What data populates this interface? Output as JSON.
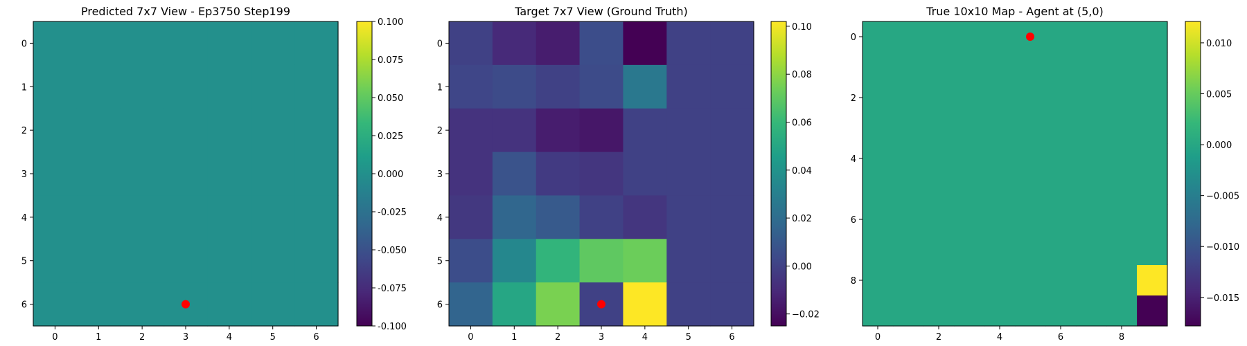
{
  "colormap": {
    "name": "viridis",
    "stops": [
      "#440154",
      "#482878",
      "#3e4989",
      "#31688e",
      "#26828e",
      "#1f9e89",
      "#35b779",
      "#6ece58",
      "#b5de2b",
      "#fde725"
    ]
  },
  "marker_color": "#ff0000",
  "chart_data": [
    {
      "type": "heatmap",
      "title": "Predicted 7x7 View - Ep3750 Step199",
      "xlabel": "",
      "ylabel": "",
      "x_ticks": [
        "0",
        "1",
        "2",
        "3",
        "4",
        "5",
        "6"
      ],
      "y_ticks": [
        "0",
        "1",
        "2",
        "3",
        "4",
        "5",
        "6"
      ],
      "vmin": -0.1,
      "vmax": 0.1,
      "colorbar_ticks": [
        "-0.100",
        "-0.075",
        "-0.050",
        "-0.025",
        "0.000",
        "0.025",
        "0.050",
        "0.075",
        "0.100"
      ],
      "values": [
        [
          0,
          0,
          0,
          0,
          0,
          0,
          0
        ],
        [
          0,
          0,
          0,
          0,
          0,
          0,
          0
        ],
        [
          0,
          0,
          0,
          0,
          0,
          0,
          0
        ],
        [
          0,
          0,
          0,
          0,
          0,
          0,
          0
        ],
        [
          0,
          0,
          0,
          0,
          0,
          0,
          0
        ],
        [
          0,
          0,
          0,
          0,
          0,
          0,
          0
        ],
        [
          0,
          0,
          0,
          0,
          0,
          0,
          0
        ]
      ],
      "marker": {
        "col": 3,
        "row": 6
      }
    },
    {
      "type": "heatmap",
      "title": "Target 7x7 View (Ground Truth)",
      "xlabel": "",
      "ylabel": "",
      "x_ticks": [
        "0",
        "1",
        "2",
        "3",
        "4",
        "5",
        "6"
      ],
      "y_ticks": [
        "0",
        "1",
        "2",
        "3",
        "4",
        "5",
        "6"
      ],
      "vmin": -0.025,
      "vmax": 0.102,
      "colorbar_ticks": [
        "−0.02",
        "0.00",
        "0.02",
        "0.04",
        "0.06",
        "0.08",
        "0.10"
      ],
      "values": [
        [
          0.0,
          -0.01,
          -0.015,
          0.005,
          -0.025,
          0.0,
          0.0
        ],
        [
          0.002,
          0.004,
          0.0,
          0.004,
          0.026,
          0.0,
          0.0
        ],
        [
          -0.006,
          -0.006,
          -0.015,
          -0.017,
          0.0,
          0.0,
          0.0
        ],
        [
          -0.006,
          0.008,
          -0.003,
          -0.005,
          0.0,
          0.0,
          0.0
        ],
        [
          -0.004,
          0.017,
          0.011,
          0.0,
          -0.005,
          0.0,
          0.0
        ],
        [
          0.005,
          0.034,
          0.058,
          0.07,
          0.073,
          0.0,
          0.0
        ],
        [
          0.016,
          0.05,
          0.076,
          0.0,
          0.102,
          0.0,
          0.0
        ]
      ],
      "marker": {
        "col": 3,
        "row": 6
      }
    },
    {
      "type": "heatmap",
      "title": "True 10x10 Map - Agent at (5,0)",
      "xlabel": "",
      "ylabel": "",
      "x_ticks": [
        "0",
        "2",
        "4",
        "6",
        "8"
      ],
      "y_ticks": [
        "0",
        "2",
        "4",
        "6",
        "8"
      ],
      "vmin": -0.0178,
      "vmax": 0.0121,
      "colorbar_ticks": [
        "−0.015",
        "−0.010",
        "−0.005",
        "0.000",
        "0.005",
        "0.010"
      ],
      "values": [
        [
          0,
          0,
          0,
          0,
          0,
          0,
          0,
          0,
          0,
          0
        ],
        [
          0,
          0,
          0,
          0,
          0,
          0,
          0,
          0,
          0,
          0
        ],
        [
          0,
          0,
          0,
          0,
          0,
          0,
          0,
          0,
          0,
          0
        ],
        [
          0,
          0,
          0,
          0,
          0,
          0,
          0,
          0,
          0,
          0
        ],
        [
          0,
          0,
          0,
          0,
          0,
          0,
          0,
          0,
          0,
          0
        ],
        [
          0,
          0,
          0,
          0,
          0,
          0,
          0,
          0,
          0,
          0
        ],
        [
          0,
          0,
          0,
          0,
          0,
          0,
          0,
          0,
          0,
          0
        ],
        [
          0,
          0,
          0,
          0,
          0,
          0,
          0,
          0,
          0,
          0
        ],
        [
          0,
          0,
          0,
          0,
          0,
          0,
          0,
          0,
          0,
          0.0121
        ],
        [
          0,
          0,
          0,
          0,
          0,
          0,
          0,
          0,
          0,
          -0.0178
        ]
      ],
      "marker": {
        "col": 5,
        "row": 0
      }
    }
  ]
}
